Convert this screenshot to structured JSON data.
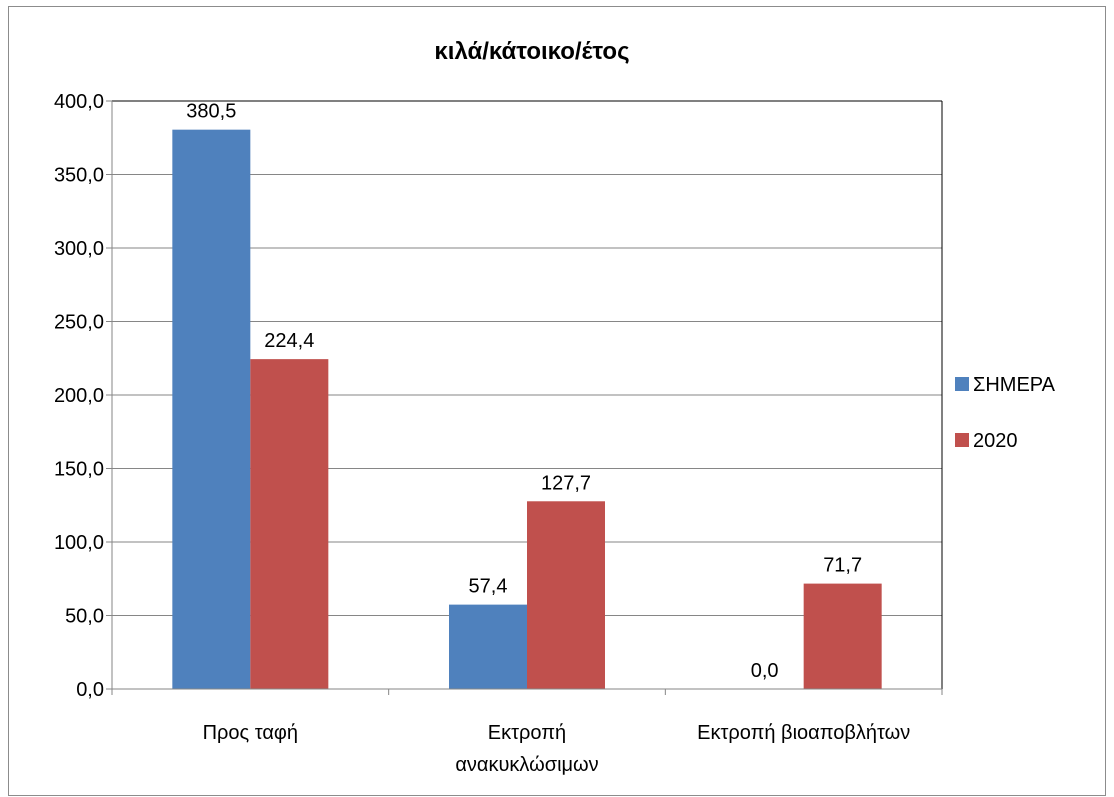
{
  "chart_data": {
    "type": "bar",
    "title": "κιλά/κάτοικο/έτος",
    "categories": [
      [
        "Προς ταφή"
      ],
      [
        "Εκτροπή",
        "ανακυκλώσιμων"
      ],
      [
        "Εκτροπή βιοαποβλήτων"
      ]
    ],
    "series": [
      {
        "name": "ΣΗΜΕΡΑ",
        "values": [
          380.5,
          57.4,
          0.0
        ],
        "labels": [
          "380,5",
          "57,4",
          "0,0"
        ],
        "color": "#4f81bd"
      },
      {
        "name": "2020",
        "values": [
          224.4,
          127.7,
          71.7
        ],
        "labels": [
          "224,4",
          "127,7",
          "71,7"
        ],
        "color": "#c0504d"
      }
    ],
    "ylim": [
      0,
      400
    ],
    "yticks": [
      "0,0",
      "50,0",
      "100,0",
      "150,0",
      "200,0",
      "250,0",
      "300,0",
      "350,0",
      "400,0"
    ],
    "grid": true,
    "legend_position": "right"
  }
}
